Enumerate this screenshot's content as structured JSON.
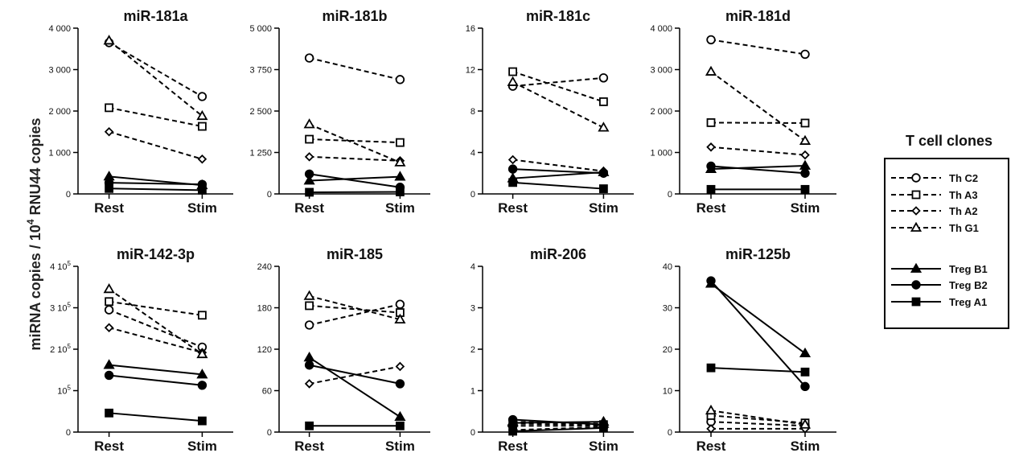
{
  "figure": {
    "ylabel": "miRNA copies / 10",
    "ylabel_sup": "4",
    "ylabel_tail": " RNU44 copies"
  },
  "legend": {
    "title": "T cell clones",
    "placement": "right",
    "entries": [
      {
        "name": "Th C2",
        "style": "dashed",
        "marker": "circle",
        "fill": "open"
      },
      {
        "name": "Th A3",
        "style": "dashed",
        "marker": "square",
        "fill": "open"
      },
      {
        "name": "Th A2",
        "style": "dashed",
        "marker": "diamond",
        "fill": "open"
      },
      {
        "name": "Th G1",
        "style": "dashed",
        "marker": "triangle",
        "fill": "open"
      },
      {
        "name": "Treg B1",
        "style": "solid",
        "marker": "triangle",
        "fill": "filled"
      },
      {
        "name": "Treg B2",
        "style": "solid",
        "marker": "circle",
        "fill": "filled"
      },
      {
        "name": "Treg A1",
        "style": "solid",
        "marker": "square",
        "fill": "filled"
      }
    ]
  },
  "chart_data": [
    {
      "type": "line",
      "title": "miR-181a",
      "categories": [
        "Rest",
        "Stim"
      ],
      "ylim": [
        0,
        4000
      ],
      "yticks": [
        {
          "v": 0,
          "label": "0"
        },
        {
          "v": 1000,
          "label": "1 000"
        },
        {
          "v": 2000,
          "label": "2 000"
        },
        {
          "v": 3000,
          "label": "3 000"
        },
        {
          "v": 4000,
          "label": "4 000"
        }
      ],
      "series": [
        {
          "name": "Th C2",
          "values": [
            3650,
            2350
          ]
        },
        {
          "name": "Th A3",
          "values": [
            2080,
            1630
          ]
        },
        {
          "name": "Th A2",
          "values": [
            1500,
            840
          ]
        },
        {
          "name": "Th G1",
          "values": [
            3700,
            1880
          ]
        },
        {
          "name": "Treg B1",
          "values": [
            420,
            210
          ]
        },
        {
          "name": "Treg B2",
          "values": [
            270,
            230
          ]
        },
        {
          "name": "Treg A1",
          "values": [
            130,
            90
          ]
        }
      ]
    },
    {
      "type": "line",
      "title": "miR-181b",
      "categories": [
        "Rest",
        "Stim"
      ],
      "ylim": [
        0,
        5000
      ],
      "yticks": [
        {
          "v": 0,
          "label": "0"
        },
        {
          "v": 1250,
          "label": "1 250"
        },
        {
          "v": 2500,
          "label": "2 500"
        },
        {
          "v": 3750,
          "label": "3 750"
        },
        {
          "v": 5000,
          "label": "5 000"
        }
      ],
      "series": [
        {
          "name": "Th C2",
          "values": [
            4100,
            3450
          ]
        },
        {
          "name": "Th A3",
          "values": [
            1650,
            1550
          ]
        },
        {
          "name": "Th A2",
          "values": [
            1120,
            1000
          ]
        },
        {
          "name": "Th G1",
          "values": [
            2100,
            950
          ]
        },
        {
          "name": "Treg B1",
          "values": [
            400,
            520
          ]
        },
        {
          "name": "Treg B2",
          "values": [
            600,
            200
          ]
        },
        {
          "name": "Treg A1",
          "values": [
            50,
            60
          ]
        }
      ]
    },
    {
      "type": "line",
      "title": "miR-181c",
      "categories": [
        "Rest",
        "Stim"
      ],
      "ylim": [
        0,
        16
      ],
      "yticks": [
        {
          "v": 0,
          "label": "0"
        },
        {
          "v": 4,
          "label": "4"
        },
        {
          "v": 8,
          "label": "8"
        },
        {
          "v": 12,
          "label": "12"
        },
        {
          "v": 16,
          "label": "16"
        }
      ],
      "series": [
        {
          "name": "Th C2",
          "values": [
            10.4,
            11.2
          ]
        },
        {
          "name": "Th A3",
          "values": [
            11.8,
            8.9
          ]
        },
        {
          "name": "Th A2",
          "values": [
            3.3,
            2.2
          ]
        },
        {
          "name": "Th G1",
          "values": [
            10.8,
            6.4
          ]
        },
        {
          "name": "Treg B1",
          "values": [
            1.5,
            2.1
          ]
        },
        {
          "name": "Treg B2",
          "values": [
            2.4,
            2.0
          ]
        },
        {
          "name": "Treg A1",
          "values": [
            1.1,
            0.5
          ]
        }
      ]
    },
    {
      "type": "line",
      "title": "miR-181d",
      "categories": [
        "Rest",
        "Stim"
      ],
      "ylim": [
        0,
        4000
      ],
      "yticks": [
        {
          "v": 0,
          "label": "0"
        },
        {
          "v": 1000,
          "label": "1 000"
        },
        {
          "v": 2000,
          "label": "2 000"
        },
        {
          "v": 3000,
          "label": "3 000"
        },
        {
          "v": 4000,
          "label": "4 000"
        }
      ],
      "series": [
        {
          "name": "Th C2",
          "values": [
            3720,
            3370
          ]
        },
        {
          "name": "Th A3",
          "values": [
            1720,
            1710
          ]
        },
        {
          "name": "Th A2",
          "values": [
            1130,
            940
          ]
        },
        {
          "name": "Th G1",
          "values": [
            2950,
            1280
          ]
        },
        {
          "name": "Treg B1",
          "values": [
            600,
            680
          ]
        },
        {
          "name": "Treg B2",
          "values": [
            670,
            500
          ]
        },
        {
          "name": "Treg A1",
          "values": [
            110,
            110
          ]
        }
      ]
    },
    {
      "type": "line",
      "title": "miR-142-3p",
      "categories": [
        "Rest",
        "Stim"
      ],
      "ylim": [
        0,
        400000
      ],
      "yticks": [
        {
          "v": 0,
          "label": "0"
        },
        {
          "v": 100000,
          "label": "10",
          "sup": "5"
        },
        {
          "v": 200000,
          "label": "2 10",
          "sup": "5"
        },
        {
          "v": 300000,
          "label": "3 10",
          "sup": "5"
        },
        {
          "v": 400000,
          "label": "4 10",
          "sup": "5"
        }
      ],
      "series": [
        {
          "name": "Th C2",
          "values": [
            295000,
            205000
          ]
        },
        {
          "name": "Th A3",
          "values": [
            315000,
            282000
          ]
        },
        {
          "name": "Th A2",
          "values": [
            252000,
            192000
          ]
        },
        {
          "name": "Th G1",
          "values": [
            345000,
            188000
          ]
        },
        {
          "name": "Treg B1",
          "values": [
            162000,
            139000
          ]
        },
        {
          "name": "Treg B2",
          "values": [
            137000,
            113000
          ]
        },
        {
          "name": "Treg A1",
          "values": [
            46000,
            27000
          ]
        }
      ]
    },
    {
      "type": "line",
      "title": "miR-185",
      "categories": [
        "Rest",
        "Stim"
      ],
      "ylim": [
        0,
        240
      ],
      "yticks": [
        {
          "v": 0,
          "label": "0"
        },
        {
          "v": 60,
          "label": "60"
        },
        {
          "v": 120,
          "label": "120"
        },
        {
          "v": 180,
          "label": "180"
        },
        {
          "v": 240,
          "label": "240"
        }
      ],
      "series": [
        {
          "name": "Th C2",
          "values": [
            155,
            185
          ]
        },
        {
          "name": "Th A3",
          "values": [
            183,
            173
          ]
        },
        {
          "name": "Th A2",
          "values": [
            70,
            95
          ]
        },
        {
          "name": "Th G1",
          "values": [
            197,
            163
          ]
        },
        {
          "name": "Treg B1",
          "values": [
            108,
            22
          ]
        },
        {
          "name": "Treg B2",
          "values": [
            97,
            70
          ]
        },
        {
          "name": "Treg A1",
          "values": [
            9,
            9
          ]
        }
      ]
    },
    {
      "type": "line",
      "title": "miR-206",
      "categories": [
        "Rest",
        "Stim"
      ],
      "ylim": [
        0,
        4
      ],
      "yticks": [
        {
          "v": 0,
          "label": "0"
        },
        {
          "v": 1,
          "label": "1"
        },
        {
          "v": 2,
          "label": "2"
        },
        {
          "v": 3,
          "label": "3"
        },
        {
          "v": 4,
          "label": "4"
        }
      ],
      "series": [
        {
          "name": "Th C2",
          "values": [
            0.15,
            0.15
          ]
        },
        {
          "name": "Th A3",
          "values": [
            0.2,
            0.18
          ]
        },
        {
          "name": "Th A2",
          "values": [
            0.05,
            0.12
          ]
        },
        {
          "name": "Th G1",
          "values": [
            0.25,
            0.2
          ]
        },
        {
          "name": "Treg B1",
          "values": [
            0.22,
            0.25
          ]
        },
        {
          "name": "Treg B2",
          "values": [
            0.3,
            0.18
          ]
        },
        {
          "name": "Treg A1",
          "values": [
            0.02,
            0.1
          ]
        }
      ]
    },
    {
      "type": "line",
      "title": "miR-125b",
      "categories": [
        "Rest",
        "Stim"
      ],
      "ylim": [
        0,
        40
      ],
      "yticks": [
        {
          "v": 0,
          "label": "0"
        },
        {
          "v": 10,
          "label": "10"
        },
        {
          "v": 20,
          "label": "20"
        },
        {
          "v": 30,
          "label": "30"
        },
        {
          "v": 40,
          "label": "40"
        }
      ],
      "series": [
        {
          "name": "Th C2",
          "values": [
            2.5,
            1.5
          ]
        },
        {
          "name": "Th A3",
          "values": [
            4.0,
            2.2
          ]
        },
        {
          "name": "Th A2",
          "values": [
            0.8,
            0.8
          ]
        },
        {
          "name": "Th G1",
          "values": [
            5.2,
            1.8
          ]
        },
        {
          "name": "Treg B1",
          "values": [
            35.8,
            19.0
          ]
        },
        {
          "name": "Treg B2",
          "values": [
            36.5,
            11.0
          ]
        },
        {
          "name": "Treg A1",
          "values": [
            15.5,
            14.5
          ]
        }
      ]
    }
  ]
}
